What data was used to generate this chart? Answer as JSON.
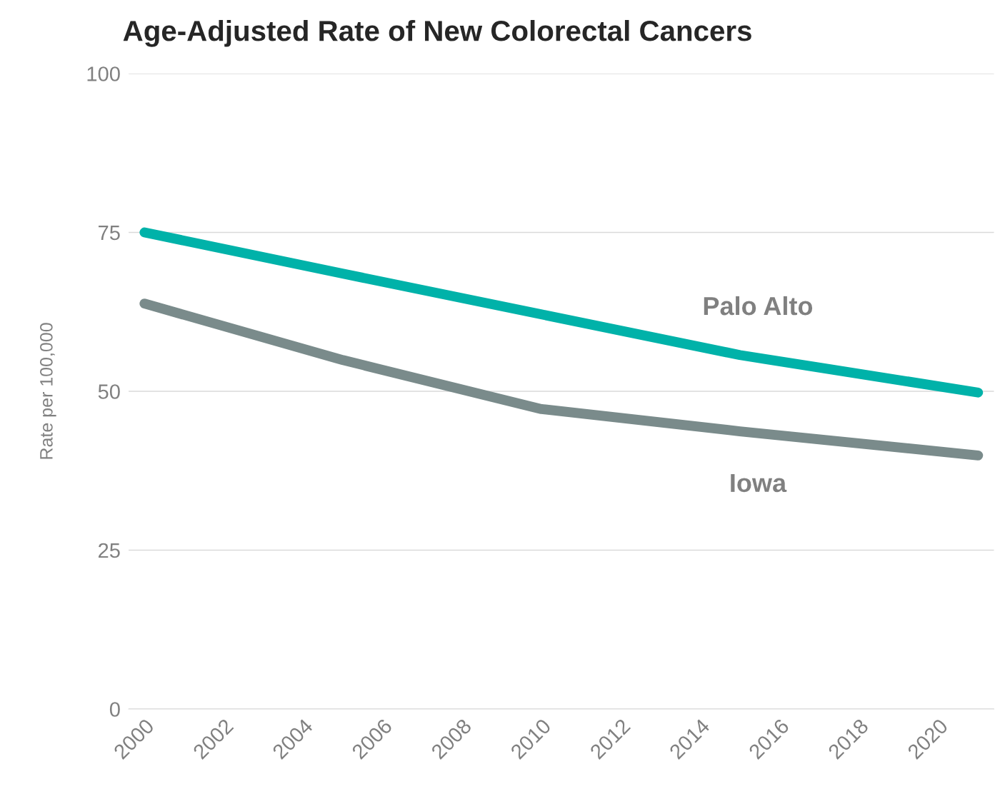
{
  "chart_data": {
    "type": "line",
    "title": "Age-Adjusted Rate of New Colorectal Cancers",
    "ylabel": "Rate per 100,000",
    "x": [
      2000,
      2005,
      2010,
      2015,
      2021
    ],
    "series": [
      {
        "name": "Palo Alto",
        "color": "#00b2a9",
        "values": [
          75.0,
          68.5,
          62.1,
          55.7,
          49.8
        ]
      },
      {
        "name": "Iowa",
        "color": "#7a8b8b",
        "values": [
          63.8,
          54.9,
          47.2,
          43.7,
          39.9
        ]
      }
    ],
    "xlim": [
      1999.6,
      2021.4
    ],
    "xticks": [
      2000,
      2002,
      2004,
      2006,
      2008,
      2010,
      2012,
      2014,
      2016,
      2018,
      2020
    ],
    "ylim": [
      0,
      100
    ],
    "yticks": [
      0,
      25,
      50,
      75,
      100
    ],
    "grid": "y",
    "legend": false,
    "marker": "none",
    "line_style": "solid"
  }
}
